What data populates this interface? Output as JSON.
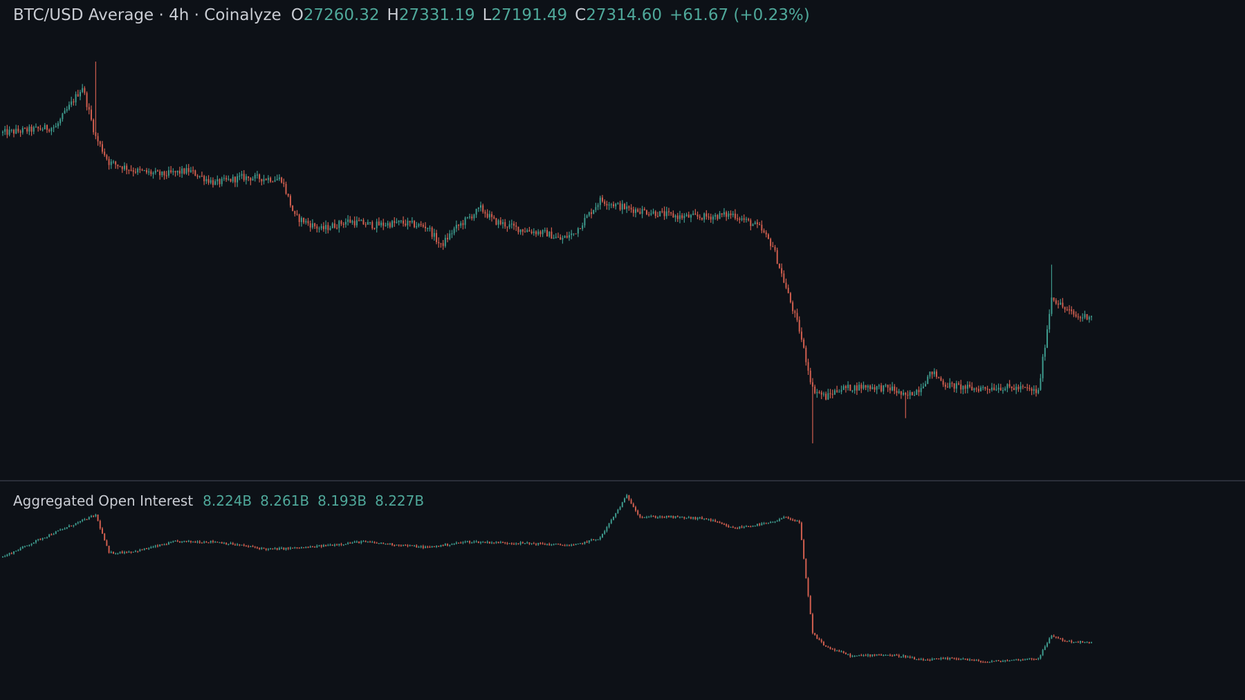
{
  "colors": {
    "background": "#0d1117",
    "up": "#3e9b8e",
    "down": "#d25f4f",
    "text": "#c9ccd3",
    "value": "#4fa89a",
    "separator": "#2a2e39"
  },
  "main_pane": {
    "title": "BTC/USD Average · 4h · Coinalyze",
    "ohlc": [
      {
        "label": "O",
        "value": "27260.32"
      },
      {
        "label": "H",
        "value": "27331.19"
      },
      {
        "label": "L",
        "value": "27191.49"
      },
      {
        "label": "C",
        "value": "27314.60"
      }
    ],
    "change": "+61.67 (+0.23%)"
  },
  "oi_pane": {
    "title": "Aggregated Open Interest",
    "values": [
      "8.224B",
      "8.261B",
      "8.193B",
      "8.227B"
    ]
  },
  "chart_data": [
    {
      "type": "candlestick",
      "title": "BTC/USD Average · 4h · Coinalyze",
      "grid": false,
      "series": [
        {
          "name": "BTC/USD Average",
          "close_path": [
            [
              0,
              28350
            ],
            [
              4,
              28420
            ],
            [
              6,
              28900
            ],
            [
              7,
              28300
            ],
            [
              8,
              28000
            ],
            [
              10,
              27900
            ],
            [
              12,
              27850
            ],
            [
              14,
              27900
            ],
            [
              16,
              27750
            ],
            [
              18,
              27820
            ],
            [
              21,
              27800
            ],
            [
              22,
              27350
            ],
            [
              24,
              27200
            ],
            [
              26,
              27300
            ],
            [
              28,
              27250
            ],
            [
              30,
              27280
            ],
            [
              32,
              27230
            ],
            [
              33,
              27000
            ],
            [
              34,
              27200
            ],
            [
              36,
              27450
            ],
            [
              37,
              27300
            ],
            [
              39,
              27200
            ],
            [
              41,
              27150
            ],
            [
              42,
              27080
            ],
            [
              43,
              27150
            ],
            [
              45,
              27550
            ],
            [
              47,
              27450
            ],
            [
              49,
              27400
            ],
            [
              51,
              27350
            ],
            [
              53,
              27350
            ],
            [
              55,
              27380
            ],
            [
              56,
              27300
            ],
            [
              57,
              27220
            ],
            [
              58,
              27000
            ],
            [
              59,
              26500
            ],
            [
              60,
              26000
            ],
            [
              61,
              25300
            ],
            [
              62,
              25200
            ],
            [
              63,
              25300
            ],
            [
              65,
              25330
            ],
            [
              67,
              25300
            ],
            [
              68,
              25200
            ],
            [
              69,
              25300
            ],
            [
              70,
              25500
            ],
            [
              71,
              25350
            ],
            [
              73,
              25300
            ],
            [
              75,
              25320
            ],
            [
              77,
              25300
            ],
            [
              78,
              25260
            ],
            [
              79,
              26400
            ],
            [
              80,
              26250
            ],
            [
              81,
              26150
            ],
            [
              82,
              26180
            ]
          ],
          "extreme_wicks": [
            {
              "x": 7,
              "high": 29200
            },
            {
              "x": 61,
              "low": 24650
            },
            {
              "x": 68,
              "low": 24950
            },
            {
              "x": 79,
              "high": 26780
            }
          ]
        }
      ]
    },
    {
      "type": "candlestick",
      "title": "Aggregated Open Interest",
      "grid": false,
      "series": [
        {
          "name": "Aggregated Open Interest",
          "close_path": [
            [
              0,
              8.1
            ],
            [
              3,
              8.2
            ],
            [
              7,
              8.32
            ],
            [
              8,
              8.12
            ],
            [
              10,
              8.13
            ],
            [
              13,
              8.18
            ],
            [
              16,
              8.18
            ],
            [
              20,
              8.14
            ],
            [
              23,
              8.15
            ],
            [
              27,
              8.18
            ],
            [
              32,
              8.15
            ],
            [
              35,
              8.18
            ],
            [
              40,
              8.17
            ],
            [
              43,
              8.16
            ],
            [
              45,
              8.2
            ],
            [
              47,
              8.42
            ],
            [
              48,
              8.31
            ],
            [
              50,
              8.31
            ],
            [
              53,
              8.3
            ],
            [
              55,
              8.25
            ],
            [
              58,
              8.28
            ],
            [
              59,
              8.31
            ],
            [
              60,
              8.28
            ],
            [
              61,
              7.7
            ],
            [
              62,
              7.63
            ],
            [
              64,
              7.58
            ],
            [
              66,
              7.59
            ],
            [
              68,
              7.58
            ],
            [
              69,
              7.56
            ],
            [
              72,
              7.57
            ],
            [
              74,
              7.55
            ],
            [
              76,
              7.56
            ],
            [
              78,
              7.57
            ],
            [
              79,
              7.69
            ],
            [
              80,
              7.66
            ],
            [
              82,
              7.65
            ]
          ]
        }
      ]
    }
  ]
}
